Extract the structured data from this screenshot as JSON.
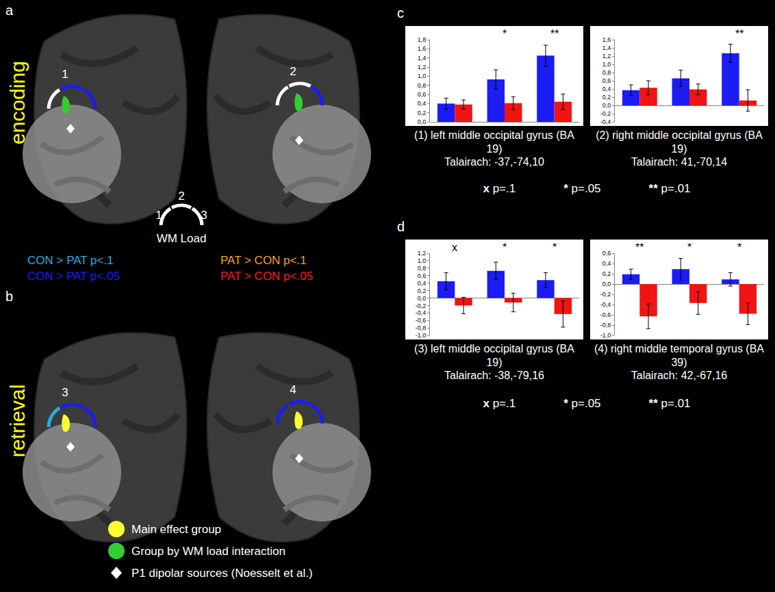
{
  "chart_data": [
    {
      "type": "bar",
      "title": "(1) left middle occipital gyrus (BA 19)",
      "subtitle": "Talairach: -37,-74,10",
      "categories": [
        null,
        null,
        null
      ],
      "series": [
        {
          "color": "#1c1cf5",
          "values": [
            0.4,
            0.93,
            1.45
          ],
          "errors": [
            0.12,
            0.21,
            0.23
          ]
        },
        {
          "color": "#f01414",
          "values": [
            0.38,
            0.41,
            0.44
          ],
          "errors": [
            0.1,
            0.14,
            0.17
          ]
        }
      ],
      "ylim": [
        0,
        1.8
      ],
      "yticks": [
        {
          "value": 0,
          "label": "0,0"
        },
        {
          "value": 0.2,
          "label": "0,2"
        },
        {
          "value": 0.4,
          "label": "0,4"
        },
        {
          "value": 0.6,
          "label": "0,6"
        },
        {
          "value": 0.8,
          "label": "0,8"
        },
        {
          "value": 1,
          "label": "1,0"
        },
        {
          "value": 1.2,
          "label": "1,2"
        },
        {
          "value": 1.4,
          "label": "1,4"
        },
        {
          "value": 1.6,
          "label": "1,6"
        },
        {
          "value": 1.8,
          "label": "1,8"
        }
      ],
      "annotations": [
        {
          "index": 1,
          "text": "*"
        },
        {
          "index": 2,
          "text": "**"
        }
      ],
      "tick_labels": "y",
      "grid": false
    },
    {
      "type": "bar",
      "title": "(2) right middle occipital gyrus (BA 19)",
      "subtitle": "Talairach: 41,-70,14",
      "categories": [
        null,
        null,
        null
      ],
      "series": [
        {
          "color": "#1c1cf5",
          "values": [
            0.37,
            0.66,
            1.27
          ],
          "errors": [
            0.13,
            0.2,
            0.22
          ]
        },
        {
          "color": "#f01414",
          "values": [
            0.43,
            0.39,
            0.12
          ],
          "errors": [
            0.17,
            0.13,
            0.26
          ]
        }
      ],
      "ylim": [
        -0.4,
        1.6
      ],
      "yticks": [
        {
          "value": -0.4,
          "label": "-0,4"
        },
        {
          "value": -0.2,
          "label": "-0,2"
        },
        {
          "value": 0,
          "label": "0,0"
        },
        {
          "value": 0.2,
          "label": "0,2"
        },
        {
          "value": 0.4,
          "label": "0,4"
        },
        {
          "value": 0.6,
          "label": "0,6"
        },
        {
          "value": 0.8,
          "label": "0,8"
        },
        {
          "value": 1,
          "label": "1,0"
        },
        {
          "value": 1.2,
          "label": "1,2"
        },
        {
          "value": 1.4,
          "label": "1,4"
        },
        {
          "value": 1.6,
          "label": "1,6"
        }
      ],
      "annotations": [
        {
          "index": 2,
          "text": "**"
        }
      ],
      "tick_labels": "y",
      "grid": false
    },
    {
      "type": "bar",
      "title": "(3) left middle occipital gyrus (BA 19)",
      "subtitle": "Talairach: -38,-79,16",
      "categories": [
        null,
        null,
        null
      ],
      "series": [
        {
          "color": "#1c1cf5",
          "values": [
            0.45,
            0.73,
            0.48
          ],
          "errors": [
            0.23,
            0.23,
            0.2
          ]
        },
        {
          "color": "#f01414",
          "values": [
            -0.2,
            -0.12,
            -0.43
          ],
          "errors": [
            0.22,
            0.25,
            0.35
          ]
        }
      ],
      "ylim": [
        -1.0,
        1.2
      ],
      "yticks": [
        {
          "value": -1,
          "label": "-1,0"
        },
        {
          "value": -0.8,
          "label": "-0,8"
        },
        {
          "value": -0.6,
          "label": "-0,6"
        },
        {
          "value": -0.4,
          "label": "-0,4"
        },
        {
          "value": -0.2,
          "label": "-0,2"
        },
        {
          "value": 0,
          "label": "0,0"
        },
        {
          "value": 0.2,
          "label": "0,2"
        },
        {
          "value": 0.4,
          "label": "0,4"
        },
        {
          "value": 0.6,
          "label": "0,6"
        },
        {
          "value": 0.8,
          "label": "0,8"
        },
        {
          "value": 1,
          "label": "1,0"
        },
        {
          "value": 1.2,
          "label": "1,2"
        }
      ],
      "annotations": [
        {
          "index": 0,
          "text": "x"
        },
        {
          "index": 1,
          "text": "*"
        },
        {
          "index": 2,
          "text": "*"
        }
      ],
      "tick_labels": "y",
      "grid": false
    },
    {
      "type": "bar",
      "title": "(4) right middle temporal gyrus (BA 39)",
      "subtitle": "Talairach: 42,-67,16",
      "categories": [
        null,
        null,
        null
      ],
      "series": [
        {
          "color": "#1c1cf5",
          "values": [
            0.19,
            0.29,
            0.09
          ],
          "errors": [
            0.1,
            0.21,
            0.13
          ]
        },
        {
          "color": "#f01414",
          "values": [
            -0.63,
            -0.37,
            -0.58
          ],
          "errors": [
            0.24,
            0.22,
            0.21
          ]
        }
      ],
      "ylim": [
        -1.0,
        0.6
      ],
      "yticks": [
        {
          "value": -1,
          "label": "-1,0"
        },
        {
          "value": -0.8,
          "label": "-0,8"
        },
        {
          "value": -0.6,
          "label": "-0,6"
        },
        {
          "value": -0.4,
          "label": "-0,4"
        },
        {
          "value": -0.2,
          "label": "-0,2"
        },
        {
          "value": 0,
          "label": "0,0"
        },
        {
          "value": 0.2,
          "label": "0,2"
        },
        {
          "value": 0.4,
          "label": "0,4"
        },
        {
          "value": 0.6,
          "label": "0,6"
        }
      ],
      "annotations": [
        {
          "index": 0,
          "text": "**"
        },
        {
          "index": 1,
          "text": "*"
        },
        {
          "index": 2,
          "text": "*"
        }
      ],
      "tick_labels": "y",
      "grid": false
    }
  ],
  "figure": {
    "panels": [
      {
        "letter": "a",
        "row_label": "encoding",
        "color": "#ffff00",
        "sites": [
          {
            "label": "1",
            "cluster_color": "#33cc33",
            "arc": [
              "#ffffff",
              "#1a1aff",
              "#1a1aff"
            ]
          },
          {
            "label": "2",
            "cluster_color": "#33cc33",
            "arc": [
              "#ffffff",
              "#ffffff",
              "#1a1aff"
            ]
          }
        ]
      },
      {
        "letter": "b",
        "row_label": "retrieval",
        "color": "#ffff00",
        "sites": [
          {
            "label": "3",
            "cluster_color": "#ffff33",
            "arc": [
              "#29abe2",
              "#1a1aff",
              "#1a1aff"
            ]
          },
          {
            "label": "4",
            "cluster_color": "#ffff33",
            "arc": [
              "#1a1aff",
              "#1a1aff",
              "#1a1aff"
            ]
          }
        ]
      },
      {
        "letter": "c",
        "key": [
          {
            "symbol": "x",
            "label": "p=.1"
          },
          {
            "symbol": "*",
            "label": "p=.05"
          },
          {
            "symbol": "**",
            "label": "p=.01"
          }
        ]
      },
      {
        "letter": "d",
        "key": [
          {
            "symbol": "x",
            "label": "p=.1"
          },
          {
            "symbol": "*",
            "label": "p=.05"
          },
          {
            "symbol": "**",
            "label": "p=.01"
          }
        ]
      }
    ],
    "wm_load": {
      "label": "WM Load",
      "levels": [
        "1",
        "2",
        "3"
      ],
      "color": "#ffffff"
    },
    "contrast_legend": [
      {
        "text": "CON > PAT p<.1",
        "color": "#29abe2"
      },
      {
        "text": "CON > PAT p<.05",
        "color": "#1a1aff"
      },
      {
        "text": "PAT > CON p<.1",
        "color": "#f7a21d"
      },
      {
        "text": "PAT > CON p<.05",
        "color": "#ff1a1a"
      }
    ],
    "marker_legend": [
      {
        "text": "Main effect group",
        "marker": "circle",
        "color": "#ffff33"
      },
      {
        "text": "Group by WM load interaction",
        "marker": "circle",
        "color": "#33cc33"
      },
      {
        "text": "P1 dipolar sources (Noesselt et al.)",
        "marker": "diamond",
        "color": "#ffffff"
      }
    ]
  }
}
